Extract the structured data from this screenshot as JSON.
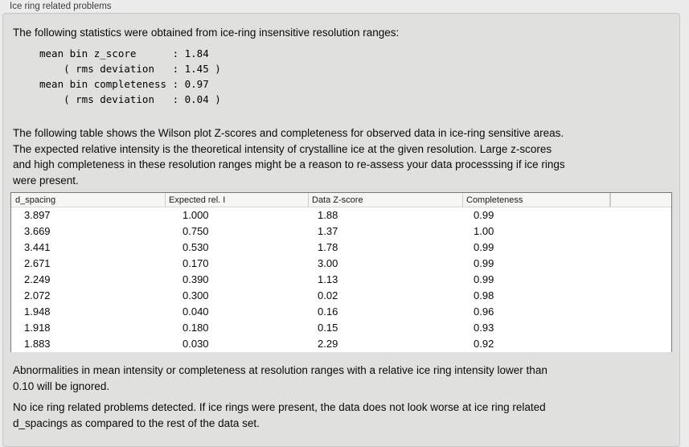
{
  "panel": {
    "title": "Ice ring related problems",
    "intro": "The following statistics were obtained from ice-ring insensitive resolution ranges:",
    "stats_block": "mean bin z_score      : 1.84\n    ( rms deviation   : 1.45 )\nmean bin completeness : 0.97\n    ( rms deviation   : 0.04 )",
    "table_description": "The following table shows the Wilson plot Z-scores and completeness for observed data in ice-ring sensitive areas.\nThe expected relative intensity is the theoretical intensity of crystalline ice at the given resolution. Large z-scores\nand high completeness in these resolution ranges might be a reason to re-assess your data processsing if ice rings\nwere present.",
    "note_ignore": "Abnormalities in mean intensity or completeness at resolution ranges with a relative ice ring intensity lower than\n0.10 will be ignored.",
    "conclusion": "No ice ring related problems detected. If ice rings were present, the data does not look worse at ice ring related\nd_spacings as compared to the rest of the data set."
  },
  "table": {
    "columns": [
      "d_spacing",
      "Expected rel. I",
      "Data Z-score",
      "Completeness",
      ""
    ],
    "rows": [
      [
        "3.897",
        "1.000",
        "1.88",
        "0.99"
      ],
      [
        "3.669",
        "0.750",
        "1.37",
        "1.00"
      ],
      [
        "3.441",
        "0.530",
        "1.78",
        "0.99"
      ],
      [
        "2.671",
        "0.170",
        "3.00",
        "0.99"
      ],
      [
        "2.249",
        "0.390",
        "1.13",
        "0.99"
      ],
      [
        "2.072",
        "0.300",
        "0.02",
        "0.98"
      ],
      [
        "1.948",
        "0.040",
        "0.16",
        "0.96"
      ],
      [
        "1.918",
        "0.180",
        "0.15",
        "0.93"
      ],
      [
        "1.883",
        "0.030",
        "2.29",
        "0.92"
      ]
    ]
  },
  "colors": {
    "page_bg": "#ececec",
    "panel_bg": "#e0e0df",
    "table_border": "#7a7a7a",
    "header_bg": "#f6f6f5"
  }
}
